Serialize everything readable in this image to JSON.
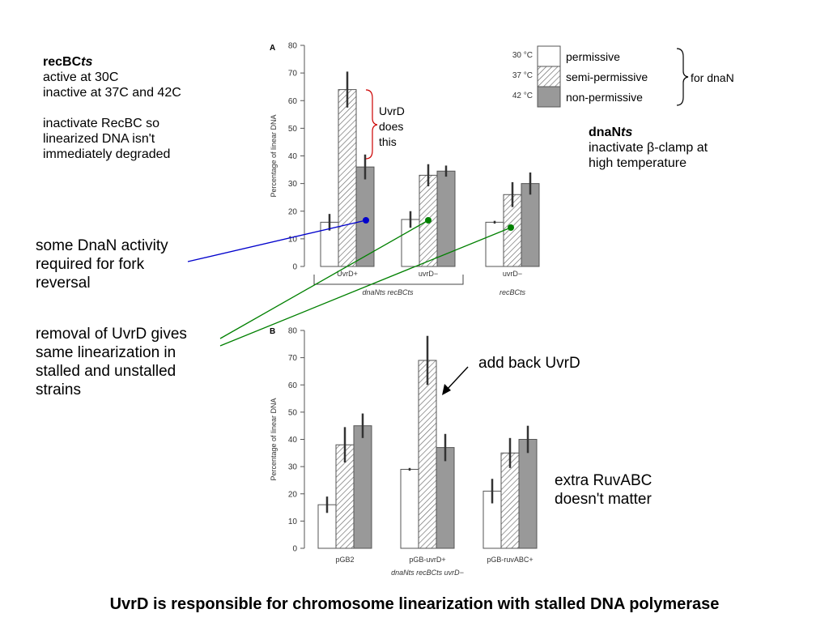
{
  "notes": {
    "recbc": {
      "title_plain": "recBC",
      "title_italic": "ts",
      "lines": [
        "active at 30C",
        "inactive at 37C and 42C",
        "",
        "inactivate RecBC so",
        "linearized DNA isn't",
        "immediately degraded"
      ]
    },
    "dnan": {
      "title_plain": "dnaN",
      "title_italic": "ts",
      "line1_pre": "inactivate ",
      "line1_symbol": "β",
      "line1_post": "-clamp at",
      "line2": "high temperature"
    },
    "dnan_activity": [
      "some DnaN activity",
      "required for fork",
      "reversal"
    ],
    "uvrd_removal": [
      "removal of UvrD gives",
      "same linearization in",
      "stalled and unstalled",
      "strains"
    ],
    "uvrd_does": [
      "UvrD",
      "does",
      "this"
    ],
    "add_back": "add back UvrD",
    "ruvabc": [
      "extra RuvABC",
      "doesn't matter"
    ],
    "for_dnan": "for dnaN"
  },
  "caption": "UvrD is responsible for chromosome linearization with stalled DNA polymerase",
  "legend": {
    "temps": [
      "30 °C",
      "37 °C",
      "42 °C"
    ],
    "labels": [
      "permissive",
      "semi-permissive",
      "non-permissive"
    ]
  },
  "colors": {
    "bar_stroke": "#555555",
    "bar_white": "#ffffff",
    "bar_gray": "#999999",
    "hatch": "#666666",
    "error_bar": "#333333",
    "blue_line": "#0000cc",
    "green_line": "#008000",
    "brace_red": "#cc0000"
  },
  "chart_data": [
    {
      "type": "bar",
      "panel_label": "A",
      "ylabel": "Percentage of linear DNA",
      "ylim": [
        0,
        80
      ],
      "yticks": [
        0,
        10,
        20,
        30,
        40,
        50,
        60,
        70,
        80
      ],
      "categories": [
        "UvrD+",
        "uvrD−",
        "uvrD−"
      ],
      "group_labels": [
        {
          "text": "dnaNts recBCts",
          "spans": [
            0,
            1
          ]
        },
        {
          "text": "recBCts",
          "spans": [
            2,
            2
          ]
        }
      ],
      "series": [
        {
          "values": [
            16,
            17,
            16
          ],
          "errors": [
            3,
            3,
            0.5
          ]
        },
        {
          "values": [
            64,
            33,
            26
          ],
          "errors": [
            6.5,
            4,
            4.5
          ]
        },
        {
          "values": [
            36,
            34.5,
            30
          ],
          "errors": [
            4.5,
            2,
            4
          ]
        }
      ]
    },
    {
      "type": "bar",
      "panel_label": "B",
      "ylabel": "Percentage of linear DNA",
      "ylim": [
        0,
        80
      ],
      "yticks": [
        0,
        10,
        20,
        30,
        40,
        50,
        60,
        70,
        80
      ],
      "categories": [
        "pGB2",
        "pGB-uvrD+",
        "pGB-ruvABC+"
      ],
      "group_labels": [
        {
          "text": "dnaNts recBCts uvrD−",
          "spans": [
            0,
            2
          ]
        }
      ],
      "series": [
        {
          "values": [
            16,
            29,
            21
          ],
          "errors": [
            3,
            0.5,
            4.5
          ]
        },
        {
          "values": [
            38,
            69,
            35
          ],
          "errors": [
            6.5,
            9,
            5.5
          ]
        },
        {
          "values": [
            45,
            37,
            40
          ],
          "errors": [
            4.5,
            5,
            5
          ]
        }
      ]
    }
  ]
}
